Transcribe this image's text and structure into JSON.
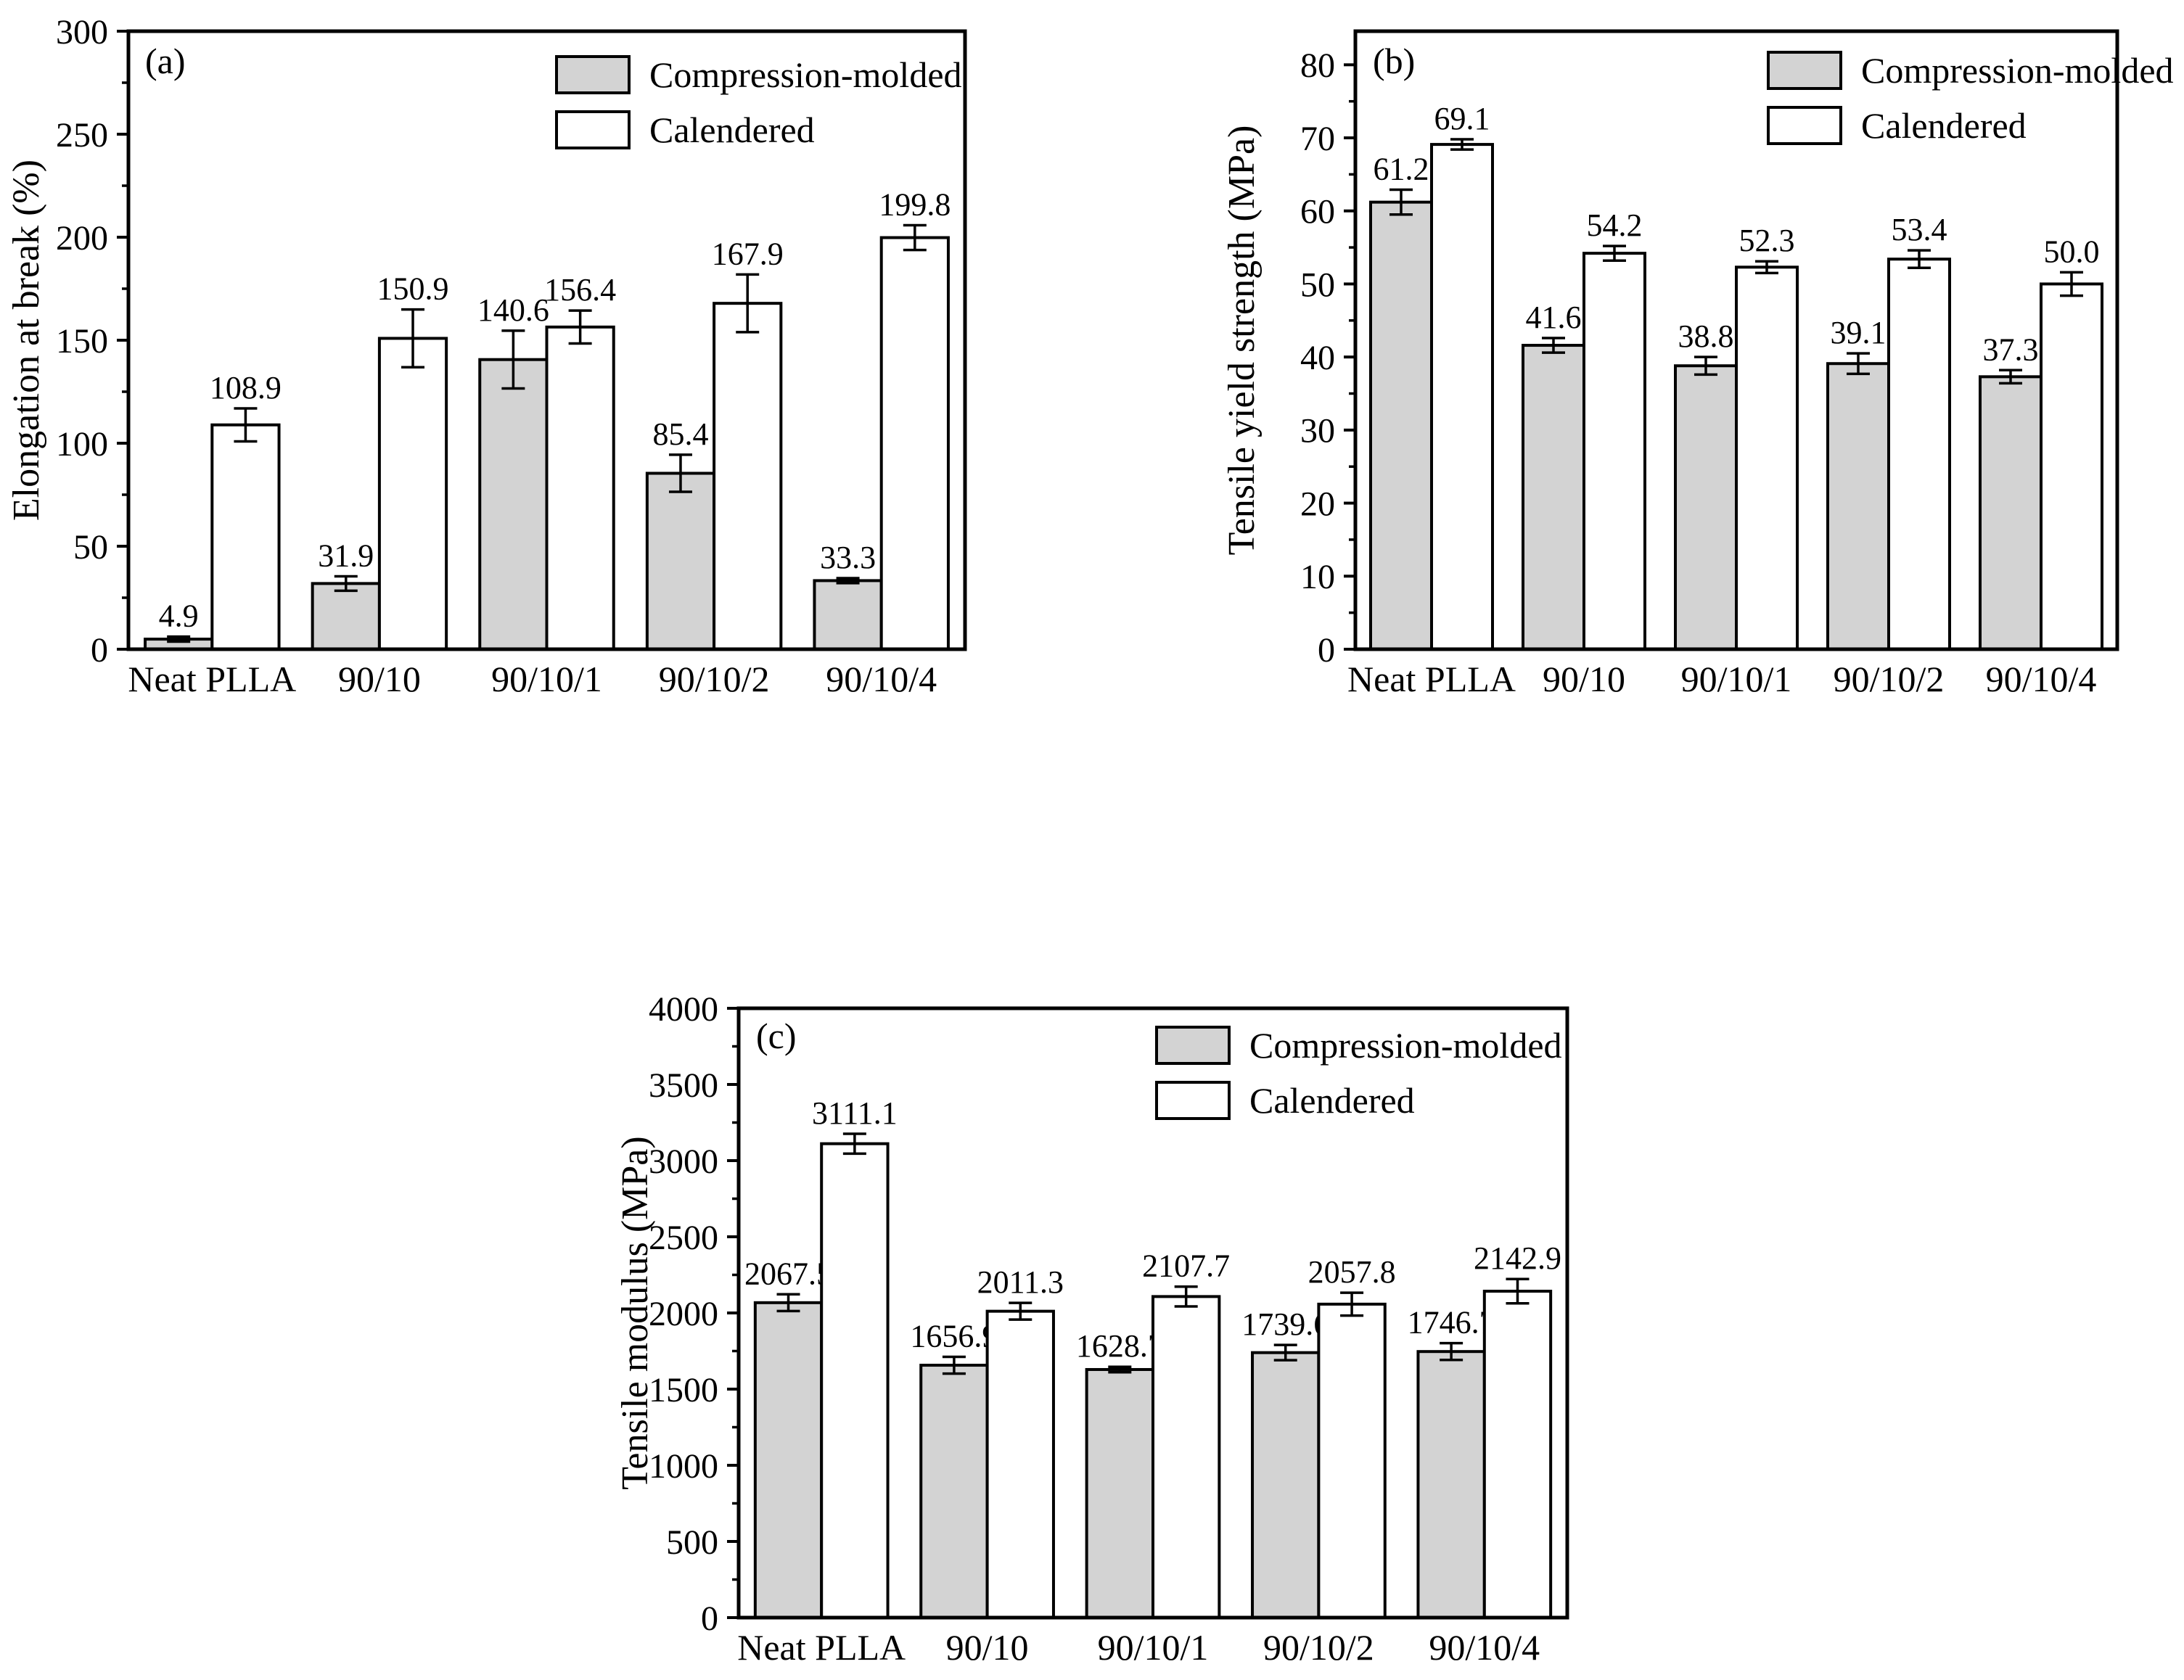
{
  "figure": {
    "background": "#ffffff",
    "series_names": [
      "Compression-molded",
      "Calendered"
    ],
    "series_fills": [
      "#d3d3d3",
      "#ffffff"
    ],
    "axis_color": "#000000",
    "categories": [
      "Neat PLLA",
      "90/10",
      "90/10/1",
      "90/10/2",
      "90/10/4"
    ]
  },
  "chart_data": [
    {
      "id": "a",
      "panel_label": "(a)",
      "type": "bar",
      "ylabel": "Elongation at break (%)",
      "xlabel": "",
      "categories": [
        "Neat PLLA",
        "90/10",
        "90/10/1",
        "90/10/2",
        "90/10/4"
      ],
      "series": [
        {
          "name": "Compression-molded",
          "values": [
            4.9,
            31.9,
            140.6,
            85.4,
            33.3
          ],
          "errors": [
            1.2,
            3.5,
            14,
            9,
            1.2
          ]
        },
        {
          "name": "Calendered",
          "values": [
            108.9,
            150.9,
            156.4,
            167.9,
            199.8
          ],
          "errors": [
            8,
            14,
            8,
            14,
            6
          ]
        }
      ],
      "ylim": [
        0,
        300
      ],
      "ytick_step": 50,
      "yminor_step": 25,
      "legend_position": "top-right-inside",
      "grid": false
    },
    {
      "id": "b",
      "panel_label": "(b)",
      "type": "bar",
      "ylabel": "Tensile yield strength (MPa)",
      "xlabel": "",
      "categories": [
        "Neat PLLA",
        "90/10",
        "90/10/1",
        "90/10/2",
        "90/10/4"
      ],
      "series": [
        {
          "name": "Compression-molded",
          "values": [
            61.2,
            41.6,
            38.8,
            39.1,
            37.3
          ],
          "errors": [
            1.7,
            1.0,
            1.2,
            1.4,
            0.9
          ]
        },
        {
          "name": "Calendered",
          "values": [
            69.1,
            54.2,
            52.3,
            53.4,
            50.0
          ],
          "errors": [
            0.7,
            1.0,
            0.8,
            1.2,
            1.6
          ]
        }
      ],
      "ylim": [
        0,
        84.6
      ],
      "ytick_step": 10,
      "yminor_step": 5,
      "legend_position": "top-right-inside",
      "grid": false
    },
    {
      "id": "c",
      "panel_label": "(c)",
      "type": "bar",
      "ylabel": "Tensile modulus (MPa)",
      "xlabel": "",
      "categories": [
        "Neat PLLA",
        "90/10",
        "90/10/1",
        "90/10/2",
        "90/10/4"
      ],
      "series": [
        {
          "name": "Compression-molded",
          "values": [
            2067.5,
            1656.9,
            1628.7,
            1739.6,
            1746.7
          ],
          "errors": [
            55,
            55,
            18,
            50,
            55
          ]
        },
        {
          "name": "Calendered",
          "values": [
            3111.1,
            2011.3,
            2107.7,
            2057.8,
            2142.9
          ],
          "errors": [
            65,
            55,
            65,
            75,
            80
          ]
        }
      ],
      "ylim": [
        0,
        4000
      ],
      "ytick_step": 500,
      "yminor_step": 250,
      "legend_position": "top-right-inside",
      "grid": false
    }
  ]
}
